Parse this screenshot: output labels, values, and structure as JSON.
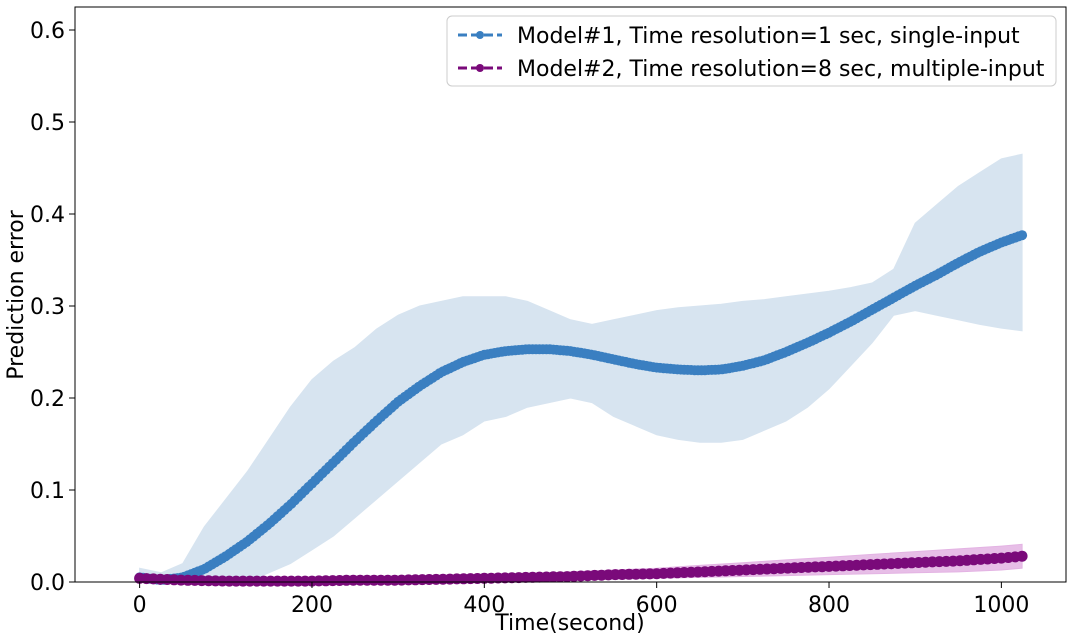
{
  "chart_data": {
    "type": "line",
    "title": "",
    "xlabel": "Time(second)",
    "ylabel": "Prediction error",
    "xlim": [
      -75,
      1075
    ],
    "ylim": [
      0.0,
      0.625
    ],
    "xticks": [
      0,
      200,
      400,
      600,
      800,
      1000
    ],
    "yticks": [
      0.0,
      0.1,
      0.2,
      0.3,
      0.4,
      0.5,
      0.6
    ],
    "xtick_labels": [
      "0",
      "200",
      "400",
      "600",
      "800",
      "1000"
    ],
    "ytick_labels": [
      "0.0",
      "0.1",
      "0.2",
      "0.3",
      "0.4",
      "0.5",
      "0.6"
    ],
    "grid": false,
    "legend_position": "top-right",
    "series": [
      {
        "name": "Model#1, Time resolution=1 sec, single-input",
        "color": "#3a7fc1",
        "band_color": "#d7e4f0",
        "line_style": "dashed",
        "marker": "circle",
        "x": [
          0,
          25,
          50,
          75,
          100,
          125,
          150,
          175,
          200,
          225,
          250,
          275,
          300,
          325,
          350,
          375,
          400,
          425,
          450,
          475,
          500,
          525,
          550,
          575,
          600,
          625,
          650,
          675,
          700,
          725,
          750,
          775,
          800,
          825,
          850,
          875,
          900,
          925,
          950,
          975,
          1000,
          1024
        ],
        "mean": [
          0.005,
          0.002,
          0.005,
          0.014,
          0.028,
          0.044,
          0.063,
          0.084,
          0.107,
          0.13,
          0.153,
          0.175,
          0.196,
          0.213,
          0.228,
          0.239,
          0.247,
          0.251,
          0.253,
          0.253,
          0.251,
          0.247,
          0.242,
          0.237,
          0.233,
          0.231,
          0.23,
          0.231,
          0.235,
          0.241,
          0.25,
          0.26,
          0.271,
          0.283,
          0.296,
          0.309,
          0.322,
          0.334,
          0.347,
          0.359,
          0.369,
          0.377
        ],
        "upper": [
          0.015,
          0.01,
          0.02,
          0.06,
          0.09,
          0.12,
          0.155,
          0.19,
          0.22,
          0.24,
          0.255,
          0.275,
          0.29,
          0.3,
          0.305,
          0.31,
          0.31,
          0.31,
          0.305,
          0.295,
          0.285,
          0.28,
          0.285,
          0.29,
          0.295,
          0.298,
          0.3,
          0.302,
          0.305,
          0.307,
          0.31,
          0.313,
          0.316,
          0.32,
          0.325,
          0.34,
          0.39,
          0.41,
          0.43,
          0.445,
          0.46,
          0.465
        ],
        "lower": [
          0.0,
          0.0,
          0.0,
          0.0,
          0.0,
          0.0,
          0.01,
          0.02,
          0.035,
          0.05,
          0.07,
          0.09,
          0.11,
          0.13,
          0.15,
          0.16,
          0.175,
          0.18,
          0.19,
          0.195,
          0.2,
          0.195,
          0.18,
          0.17,
          0.16,
          0.155,
          0.152,
          0.152,
          0.155,
          0.165,
          0.175,
          0.19,
          0.21,
          0.235,
          0.26,
          0.29,
          0.295,
          0.29,
          0.285,
          0.28,
          0.276,
          0.273
        ]
      },
      {
        "name": "Model#2, Time resolution=8 sec, multiple-input",
        "color": "#7a0a7a",
        "band_color": "#e3b3e3",
        "line_style": "dashed",
        "marker": "circle",
        "x": [
          0,
          50,
          100,
          150,
          200,
          250,
          300,
          350,
          400,
          450,
          500,
          550,
          600,
          650,
          700,
          750,
          800,
          850,
          900,
          950,
          1000,
          1024
        ],
        "mean": [
          0.004,
          0.002,
          0.001,
          0.001,
          0.001,
          0.002,
          0.002,
          0.003,
          0.004,
          0.005,
          0.006,
          0.008,
          0.009,
          0.011,
          0.013,
          0.015,
          0.017,
          0.019,
          0.021,
          0.023,
          0.026,
          0.028
        ],
        "upper": [
          0.008,
          0.005,
          0.003,
          0.003,
          0.003,
          0.004,
          0.005,
          0.006,
          0.007,
          0.009,
          0.011,
          0.013,
          0.015,
          0.018,
          0.021,
          0.024,
          0.027,
          0.03,
          0.033,
          0.036,
          0.039,
          0.041
        ],
        "lower": [
          0.001,
          0.0,
          0.0,
          0.0,
          0.0,
          0.0,
          0.0,
          0.001,
          0.001,
          0.002,
          0.002,
          0.003,
          0.004,
          0.005,
          0.006,
          0.007,
          0.008,
          0.009,
          0.01,
          0.011,
          0.013,
          0.015
        ]
      }
    ]
  }
}
